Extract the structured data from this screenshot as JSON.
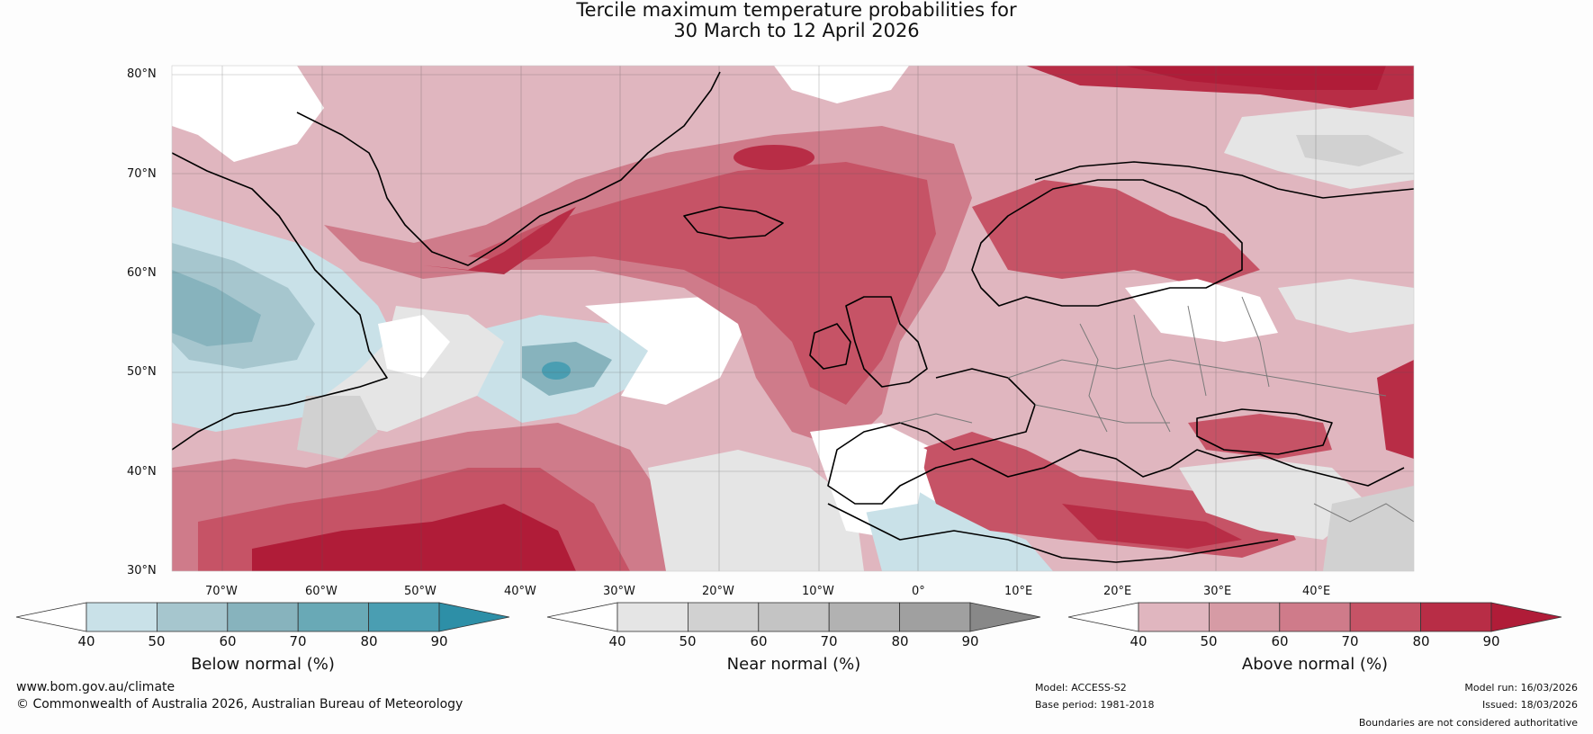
{
  "title": {
    "line1": "Tercile maximum temperature probabilities for",
    "line2": "30 March to 12 April 2026"
  },
  "map": {
    "lat_labels": [
      "80°N",
      "70°N",
      "60°N",
      "50°N",
      "40°N",
      "30°N"
    ],
    "lon_labels": [
      "70°W",
      "60°W",
      "50°W",
      "40°W",
      "30°W",
      "20°W",
      "10°W",
      "0°",
      "10°E",
      "20°E",
      "30°E",
      "40°E"
    ],
    "colors": {
      "above": [
        "#e0b6bf",
        "#d69ba5",
        "#cf7b8a",
        "#c65366",
        "#b82d46",
        "#b01c38"
      ],
      "below": [
        "#c9e1e8",
        "#a6c6ce",
        "#87b3bd",
        "#69a9b6",
        "#4a9eb2",
        "#2d8fa7"
      ],
      "near": [
        "#e5e5e5",
        "#d1d1d1",
        "#c4c4c4",
        "#b2b2b2",
        "#a0a0a0",
        "#888888"
      ],
      "land_outline": "#000000",
      "border": "#7a7a7a",
      "grid": "#555555"
    }
  },
  "legend": {
    "below": {
      "title": "Below normal (%)",
      "ticks": [
        "40",
        "50",
        "60",
        "70",
        "80",
        "90"
      ]
    },
    "near": {
      "title": "Near normal (%)",
      "ticks": [
        "40",
        "50",
        "60",
        "70",
        "80",
        "90"
      ]
    },
    "above": {
      "title": "Above normal (%)",
      "ticks": [
        "40",
        "50",
        "60",
        "70",
        "80",
        "90"
      ]
    }
  },
  "footer": {
    "website": "www.bom.gov.au/climate",
    "copyright": "© Commonwealth of Australia 2026, Australian Bureau of Meteorology",
    "model": "Model: ACCESS-S2",
    "base_period": "Base period: 1981-2018",
    "model_run": "Model run: 16/03/2026",
    "issued": "Issued: 18/03/2026",
    "disclaimer": "Boundaries are not considered authoritative"
  }
}
